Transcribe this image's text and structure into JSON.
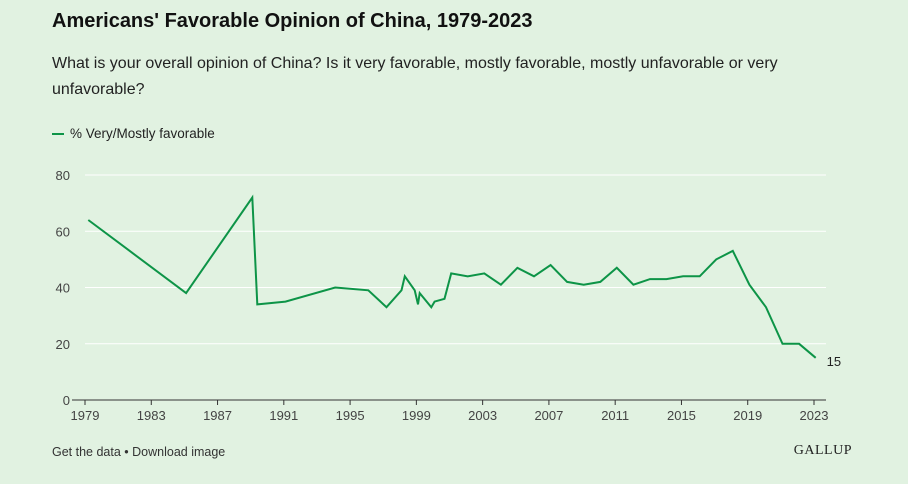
{
  "title": "Americans' Favorable Opinion of China, 1979-2023",
  "subtitle": "What is your overall opinion of China? Is it very favorable, mostly favorable, mostly unfavorable or very unfavorable?",
  "legend": {
    "label": "% Very/Mostly favorable"
  },
  "footer": {
    "get_data": "Get the data",
    "separator": " • ",
    "download": "Download image"
  },
  "brand": "GALLUP",
  "colors": {
    "line": "#0d9447",
    "background": "#e1f2e1",
    "grid": "#ffffff"
  },
  "chart_data": {
    "type": "line",
    "title": "Americans' Favorable Opinion of China, 1979-2023",
    "xlabel": "",
    "ylabel": "",
    "xlim": [
      1979,
      2023
    ],
    "ylim": [
      0,
      80
    ],
    "x_ticks": [
      1979,
      1983,
      1987,
      1991,
      1995,
      1999,
      2003,
      2007,
      2011,
      2015,
      2019,
      2023
    ],
    "y_ticks": [
      0,
      20,
      40,
      60,
      80
    ],
    "grid": true,
    "legend_position": "top-left",
    "end_label": "15",
    "series": [
      {
        "name": "% Very/Mostly favorable",
        "x": [
          1979.2,
          1985.1,
          1989.1,
          1989.4,
          1991.1,
          1994.1,
          1996.1,
          1997.2,
          1998.1,
          1998.3,
          1998.9,
          1999.1,
          1999.2,
          1999.9,
          2000.1,
          2000.7,
          2001.1,
          2002.1,
          2003.1,
          2004.1,
          2005.1,
          2006.1,
          2007.1,
          2008.1,
          2009.1,
          2010.1,
          2011.1,
          2012.1,
          2013.1,
          2014.1,
          2015.1,
          2016.1,
          2017.1,
          2018.1,
          2019.1,
          2020.1,
          2021.1,
          2022.1,
          2023.1
        ],
        "values": [
          64,
          38,
          72,
          34,
          35,
          40,
          39,
          33,
          39,
          44,
          39,
          34,
          38,
          33,
          35,
          36,
          45,
          44,
          45,
          41,
          47,
          44,
          48,
          42,
          41,
          42,
          47,
          41,
          43,
          43,
          44,
          44,
          50,
          53,
          41,
          33,
          20,
          20,
          15
        ]
      }
    ]
  }
}
